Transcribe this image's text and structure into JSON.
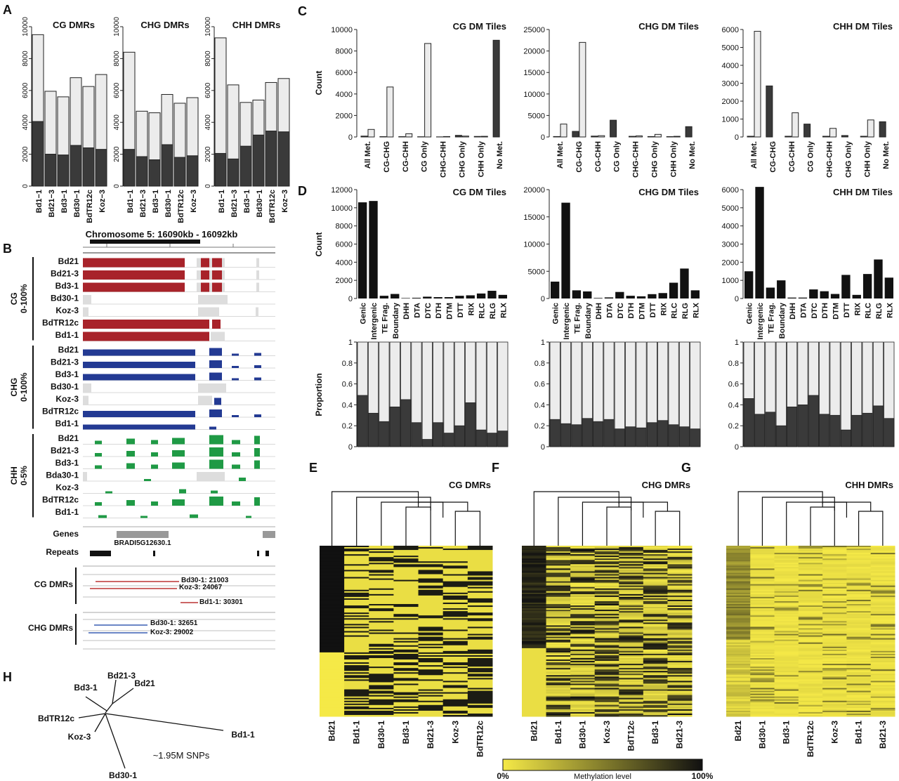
{
  "panel_labels": [
    "A",
    "B",
    "C",
    "D",
    "E",
    "F",
    "G",
    "H"
  ],
  "chart_data": [
    {
      "id": "A",
      "type": "bar",
      "stacked": true,
      "ylim": [
        0,
        10000
      ],
      "yticks": [
        0,
        2000,
        4000,
        6000,
        8000,
        10000
      ],
      "categories": [
        "Bd1−1",
        "Bd21−3",
        "Bd3−1",
        "Bd30−1",
        "BdTR12c",
        "Koz−3"
      ],
      "facets": [
        {
          "title": "CG DMRs",
          "total": [
            9500,
            5950,
            5600,
            6800,
            6250,
            7000
          ],
          "dark": [
            4050,
            2000,
            1950,
            2550,
            2400,
            2300
          ]
        },
        {
          "title": "CHG DMRs",
          "total": [
            8400,
            4700,
            4600,
            5750,
            5200,
            5550
          ],
          "dark": [
            2300,
            1850,
            1650,
            2600,
            1800,
            1900
          ]
        },
        {
          "title": "CHH DMRs",
          "total": [
            9300,
            6350,
            5250,
            5400,
            6500,
            6750
          ],
          "dark": [
            2050,
            1700,
            2500,
            3200,
            3450,
            3400
          ]
        }
      ],
      "colors": {
        "dark": "#3a3a3a",
        "light": "#ececec"
      }
    },
    {
      "id": "C",
      "type": "bar",
      "ylabel": "Count",
      "categories": [
        "All Met.",
        "CG-CHG",
        "CG-CHH",
        "CG Only",
        "CHG-CHH",
        "CHG Only",
        "CHH Only",
        "No Met."
      ],
      "facets": [
        {
          "title": "CG DM Tiles",
          "ylim": [
            0,
            10000
          ],
          "yticks": [
            0,
            2000,
            4000,
            6000,
            8000,
            10000
          ],
          "dark": [
            80,
            30,
            30,
            20,
            10,
            150,
            50,
            9000
          ],
          "light": [
            700,
            4650,
            300,
            8700,
            40,
            80,
            60,
            0
          ]
        },
        {
          "title": "CHG DM Tiles",
          "ylim": [
            0,
            25000
          ],
          "yticks": [
            0,
            5000,
            10000,
            15000,
            20000,
            25000
          ],
          "dark": [
            100,
            1300,
            200,
            3900,
            150,
            100,
            80,
            2400
          ],
          "light": [
            3000,
            22000,
            300,
            0,
            250,
            600,
            150,
            0
          ]
        },
        {
          "title": "CHH DM Tiles",
          "ylim": [
            0,
            6000
          ],
          "yticks": [
            0,
            1000,
            2000,
            3000,
            4000,
            5000,
            6000
          ],
          "dark": [
            40,
            2850,
            40,
            720,
            40,
            80,
            40,
            850
          ],
          "light": [
            5900,
            0,
            1350,
            0,
            480,
            0,
            950,
            0
          ]
        }
      ]
    },
    {
      "id": "D",
      "type": "bar",
      "ylabel": "Count",
      "ylabel2": "Proportion",
      "categories": [
        "Genic",
        "Intergenic",
        "TE Frag.",
        "Boundary",
        "DHH",
        "DTA",
        "DTC",
        "DTH",
        "DTM",
        "DTT",
        "RIX",
        "RLC",
        "RLG",
        "RLX"
      ],
      "prop_ticks": [
        0.0,
        0.2,
        0.4,
        0.6,
        0.8,
        1.0
      ],
      "facets": [
        {
          "title": "CG DM Tiles",
          "ylim": [
            0,
            12000
          ],
          "yticks": [
            0,
            2000,
            4000,
            6000,
            8000,
            10000,
            12000
          ],
          "counts": [
            10600,
            10750,
            300,
            500,
            50,
            80,
            200,
            150,
            150,
            300,
            350,
            550,
            850,
            400
          ],
          "props": [
            0.49,
            0.32,
            0.24,
            0.38,
            0.45,
            0.23,
            0.07,
            0.23,
            0.13,
            0.2,
            0.42,
            0.16,
            0.13,
            0.15
          ]
        },
        {
          "title": "CHG DM Tiles",
          "ylim": [
            0,
            20000
          ],
          "yticks": [
            0,
            5000,
            10000,
            15000,
            20000
          ],
          "counts": [
            3100,
            17600,
            1500,
            1300,
            100,
            200,
            1200,
            500,
            400,
            800,
            1000,
            2900,
            5500,
            1500
          ],
          "props": [
            0.26,
            0.22,
            0.21,
            0.27,
            0.24,
            0.26,
            0.17,
            0.19,
            0.18,
            0.23,
            0.25,
            0.21,
            0.19,
            0.17
          ]
        },
        {
          "title": "CHH DM Tiles",
          "ylim": [
            0,
            6000
          ],
          "yticks": [
            0,
            1000,
            2000,
            3000,
            4000,
            5000,
            6000
          ],
          "counts": [
            1500,
            6150,
            600,
            1000,
            50,
            50,
            500,
            400,
            250,
            1300,
            200,
            1350,
            2150,
            1150
          ],
          "props": [
            0.46,
            0.31,
            0.33,
            0.2,
            0.38,
            0.4,
            0.49,
            0.31,
            0.3,
            0.16,
            0.3,
            0.32,
            0.39,
            0.27
          ]
        }
      ]
    },
    {
      "id": "EFG",
      "type": "heatmap",
      "color_scale": {
        "low": "#f5e947",
        "high": "#111111",
        "min_label": "0%",
        "max_label": "100%",
        "title": "Methylation level"
      },
      "panels": [
        {
          "id": "E",
          "title": "CG DMRs",
          "columns": [
            "Bd21",
            "Bd1-1",
            "Bd30-1",
            "Bd3-1",
            "Bd21-3",
            "Koz-3",
            "BdTR12c"
          ]
        },
        {
          "id": "F",
          "title": "CHG DMRs",
          "columns": [
            "Bd21",
            "Bd1-1",
            "Bd30-1",
            "Koz-3",
            "BdT12c",
            "Bd3-1",
            "Bd21-3"
          ]
        },
        {
          "id": "G",
          "title": "CHH DMRs",
          "columns": [
            "Bd21",
            "Bd30-1",
            "Bd3-1",
            "BdTR12c",
            "Koz-3",
            "Bd1-1",
            "Bd21-3"
          ]
        }
      ]
    }
  ],
  "browser": {
    "chrom_title": "Chromosome 5: 16090kb - 16092kb",
    "context_labels": [
      {
        "name": "CG",
        "range": "0-100%"
      },
      {
        "name": "CHG",
        "range": "0-100%"
      },
      {
        "name": "CHH",
        "range": "0-5%"
      }
    ],
    "cg_tracks": [
      "Bd21",
      "Bd21-3",
      "Bd3-1",
      "Bd30-1",
      "Koz-3",
      "BdTR12c",
      "Bd1-1"
    ],
    "chg_tracks": [
      "Bd21",
      "Bd21-3",
      "Bd3-1",
      "Bd30-1",
      "Koz-3",
      "BdTR12c",
      "Bd1-1"
    ],
    "chh_tracks": [
      "Bd21",
      "Bd21-3",
      "Bd3-1",
      "Bda30-1",
      "Koz-3",
      "BdTR12c",
      "Bd1-1"
    ],
    "genes_label": "Genes",
    "gene_name": "BRADI5G12630.1",
    "repeats_label": "Repeats",
    "cg_dmr_label": "CG DMRs",
    "cg_dmrs": [
      "Bd30-1: 21003",
      "Koz-3: 24067",
      "Bd1-1: 30301"
    ],
    "chg_dmr_label": "CHG DMRs",
    "chg_dmrs": [
      "Bd30-1: 32651",
      "Koz-3: 29002"
    ],
    "colors": {
      "cg": "#a8232a",
      "chg": "#233a93",
      "chh": "#1f9a45",
      "grey": "#dddddd"
    }
  },
  "tree": {
    "leaves": [
      "Bd3-1",
      "Bd21-3",
      "Bd21",
      "BdTR12c",
      "Koz-3",
      "Bd30-1",
      "Bd1-1"
    ],
    "note": "~1.95M SNPs"
  }
}
